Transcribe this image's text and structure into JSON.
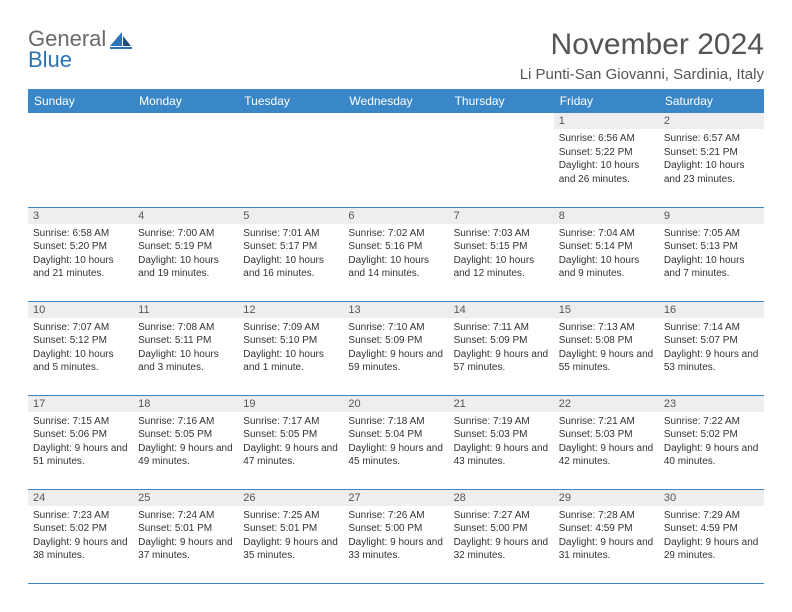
{
  "brand": {
    "line1": "General",
    "line2": "Blue"
  },
  "title": "November 2024",
  "location": "Li Punti-San Giovanni, Sardinia, Italy",
  "colors": {
    "header_bg": "#3a87c7",
    "header_text": "#ffffff",
    "daynum_bg": "#eeeeee",
    "daynum_text": "#555555",
    "cell_text": "#333333",
    "rule": "#3a87c7",
    "logo_gray": "#6a6a6a",
    "logo_blue": "#2d72b5"
  },
  "day_headers": [
    "Sunday",
    "Monday",
    "Tuesday",
    "Wednesday",
    "Thursday",
    "Friday",
    "Saturday"
  ],
  "weeks": [
    [
      null,
      null,
      null,
      null,
      null,
      {
        "n": "1",
        "sr": "6:56 AM",
        "ss": "5:22 PM",
        "dl": "10 hours and 26 minutes."
      },
      {
        "n": "2",
        "sr": "6:57 AM",
        "ss": "5:21 PM",
        "dl": "10 hours and 23 minutes."
      }
    ],
    [
      {
        "n": "3",
        "sr": "6:58 AM",
        "ss": "5:20 PM",
        "dl": "10 hours and 21 minutes."
      },
      {
        "n": "4",
        "sr": "7:00 AM",
        "ss": "5:19 PM",
        "dl": "10 hours and 19 minutes."
      },
      {
        "n": "5",
        "sr": "7:01 AM",
        "ss": "5:17 PM",
        "dl": "10 hours and 16 minutes."
      },
      {
        "n": "6",
        "sr": "7:02 AM",
        "ss": "5:16 PM",
        "dl": "10 hours and 14 minutes."
      },
      {
        "n": "7",
        "sr": "7:03 AM",
        "ss": "5:15 PM",
        "dl": "10 hours and 12 minutes."
      },
      {
        "n": "8",
        "sr": "7:04 AM",
        "ss": "5:14 PM",
        "dl": "10 hours and 9 minutes."
      },
      {
        "n": "9",
        "sr": "7:05 AM",
        "ss": "5:13 PM",
        "dl": "10 hours and 7 minutes."
      }
    ],
    [
      {
        "n": "10",
        "sr": "7:07 AM",
        "ss": "5:12 PM",
        "dl": "10 hours and 5 minutes."
      },
      {
        "n": "11",
        "sr": "7:08 AM",
        "ss": "5:11 PM",
        "dl": "10 hours and 3 minutes."
      },
      {
        "n": "12",
        "sr": "7:09 AM",
        "ss": "5:10 PM",
        "dl": "10 hours and 1 minute."
      },
      {
        "n": "13",
        "sr": "7:10 AM",
        "ss": "5:09 PM",
        "dl": "9 hours and 59 minutes."
      },
      {
        "n": "14",
        "sr": "7:11 AM",
        "ss": "5:09 PM",
        "dl": "9 hours and 57 minutes."
      },
      {
        "n": "15",
        "sr": "7:13 AM",
        "ss": "5:08 PM",
        "dl": "9 hours and 55 minutes."
      },
      {
        "n": "16",
        "sr": "7:14 AM",
        "ss": "5:07 PM",
        "dl": "9 hours and 53 minutes."
      }
    ],
    [
      {
        "n": "17",
        "sr": "7:15 AM",
        "ss": "5:06 PM",
        "dl": "9 hours and 51 minutes."
      },
      {
        "n": "18",
        "sr": "7:16 AM",
        "ss": "5:05 PM",
        "dl": "9 hours and 49 minutes."
      },
      {
        "n": "19",
        "sr": "7:17 AM",
        "ss": "5:05 PM",
        "dl": "9 hours and 47 minutes."
      },
      {
        "n": "20",
        "sr": "7:18 AM",
        "ss": "5:04 PM",
        "dl": "9 hours and 45 minutes."
      },
      {
        "n": "21",
        "sr": "7:19 AM",
        "ss": "5:03 PM",
        "dl": "9 hours and 43 minutes."
      },
      {
        "n": "22",
        "sr": "7:21 AM",
        "ss": "5:03 PM",
        "dl": "9 hours and 42 minutes."
      },
      {
        "n": "23",
        "sr": "7:22 AM",
        "ss": "5:02 PM",
        "dl": "9 hours and 40 minutes."
      }
    ],
    [
      {
        "n": "24",
        "sr": "7:23 AM",
        "ss": "5:02 PM",
        "dl": "9 hours and 38 minutes."
      },
      {
        "n": "25",
        "sr": "7:24 AM",
        "ss": "5:01 PM",
        "dl": "9 hours and 37 minutes."
      },
      {
        "n": "26",
        "sr": "7:25 AM",
        "ss": "5:01 PM",
        "dl": "9 hours and 35 minutes."
      },
      {
        "n": "27",
        "sr": "7:26 AM",
        "ss": "5:00 PM",
        "dl": "9 hours and 33 minutes."
      },
      {
        "n": "28",
        "sr": "7:27 AM",
        "ss": "5:00 PM",
        "dl": "9 hours and 32 minutes."
      },
      {
        "n": "29",
        "sr": "7:28 AM",
        "ss": "4:59 PM",
        "dl": "9 hours and 31 minutes."
      },
      {
        "n": "30",
        "sr": "7:29 AM",
        "ss": "4:59 PM",
        "dl": "9 hours and 29 minutes."
      }
    ]
  ],
  "labels": {
    "sunrise": "Sunrise: ",
    "sunset": "Sunset: ",
    "daylight": "Daylight: "
  }
}
